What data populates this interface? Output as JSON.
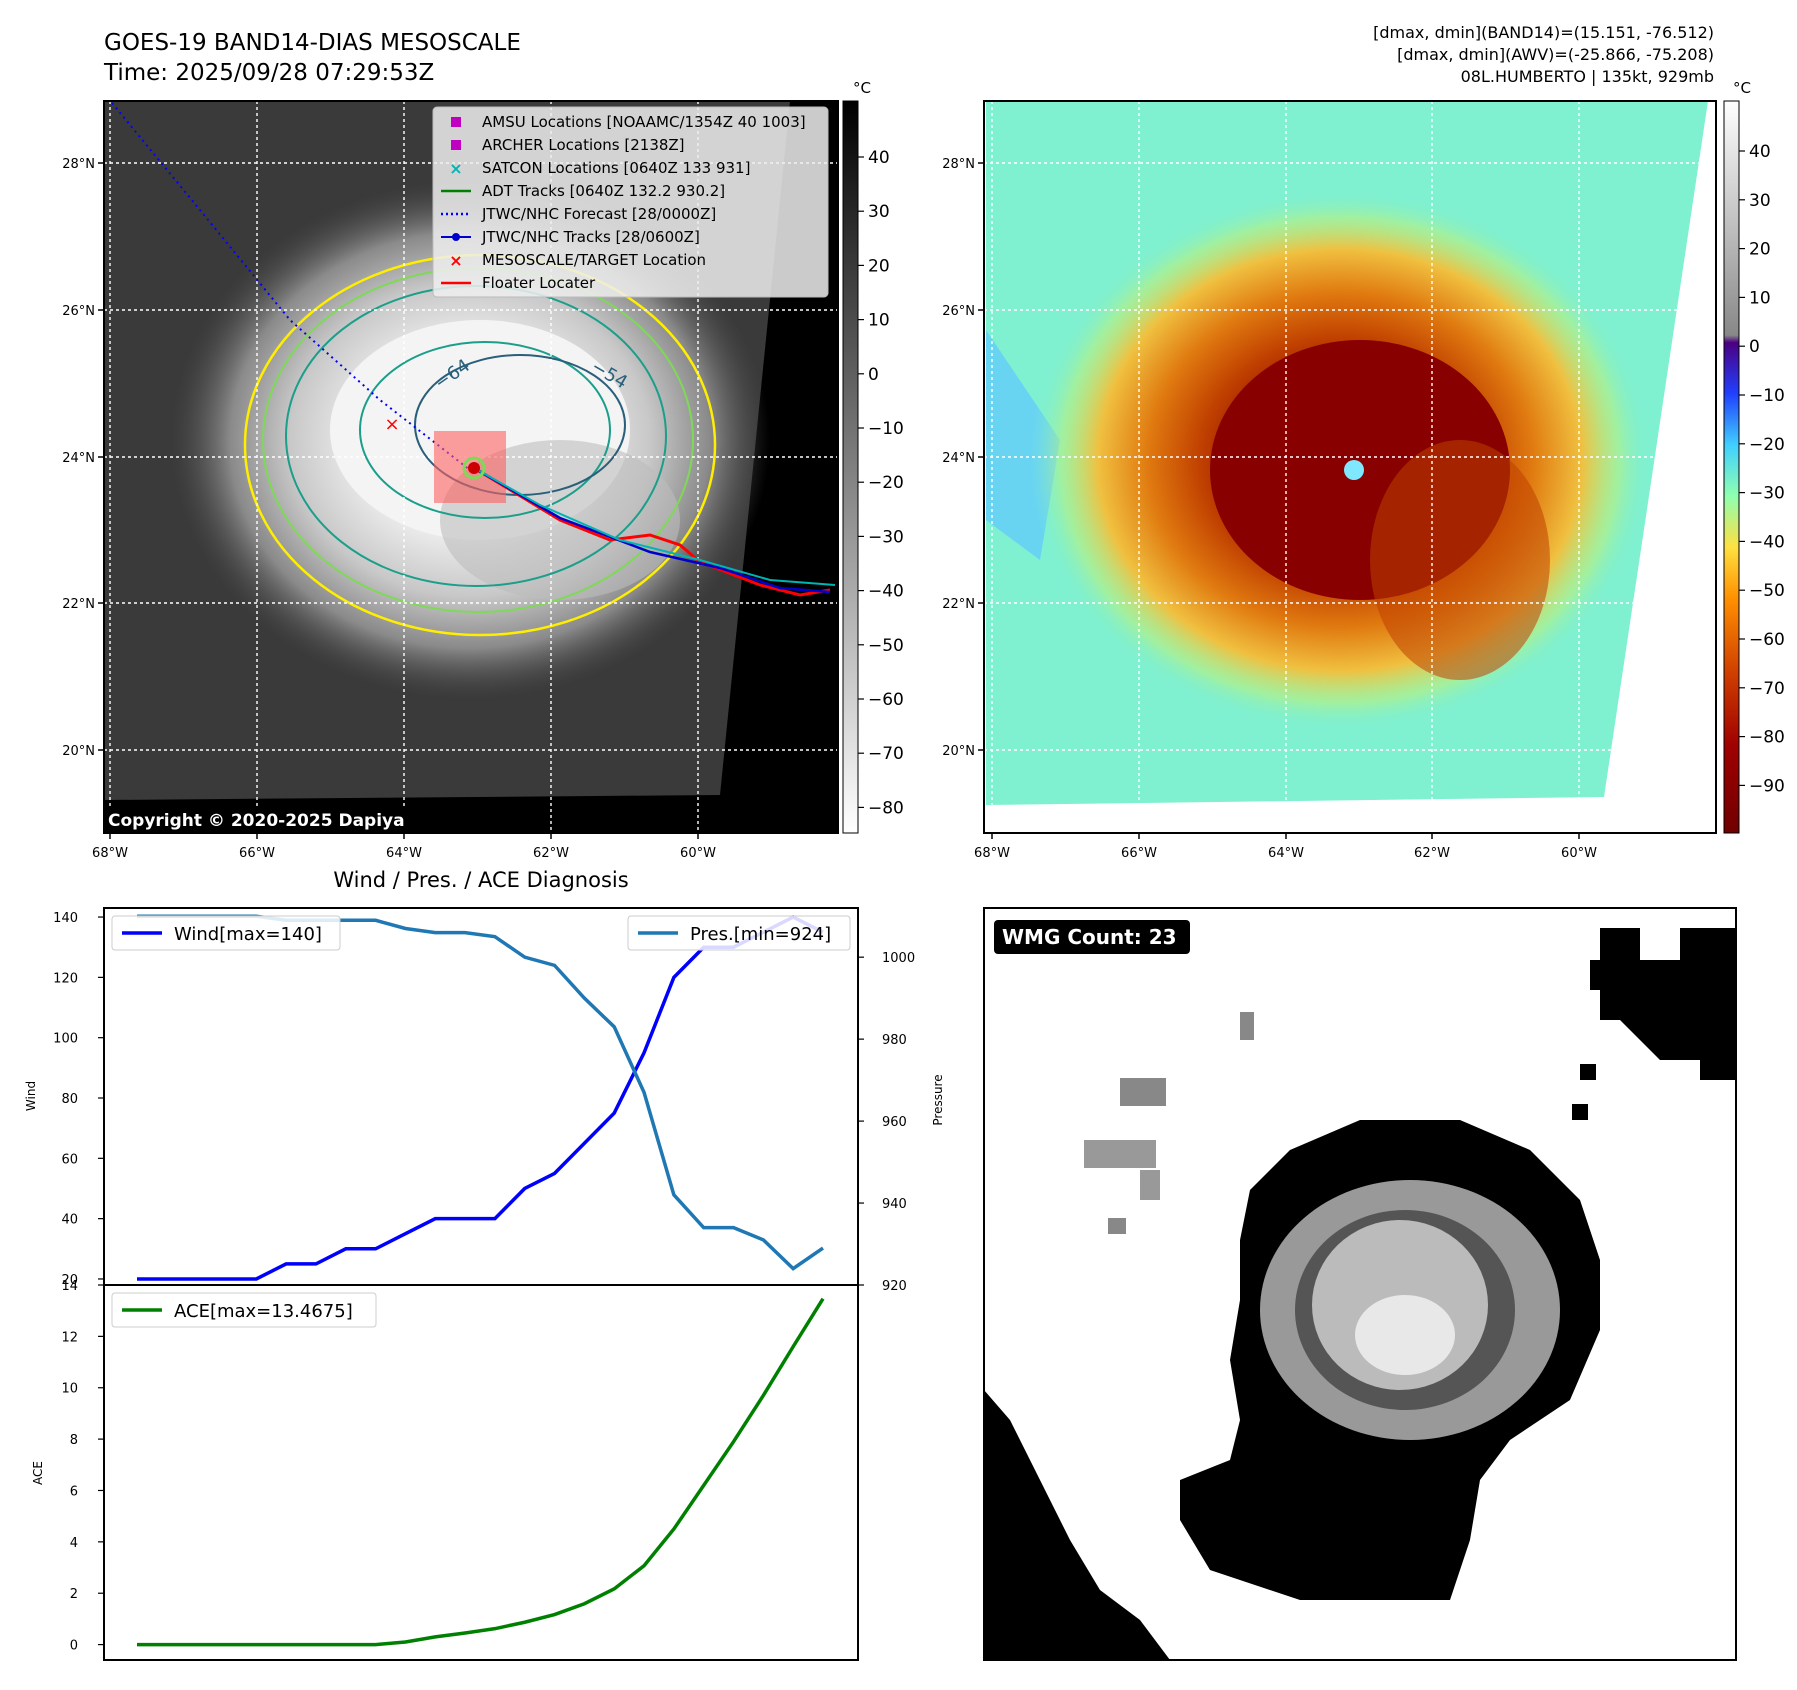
{
  "header": {
    "title": "GOES-19 BAND14-DIAS MESOSCALE",
    "time": "Time: 2025/09/28 07:29:53Z",
    "stats_line1": "[dmax, dmin](BAND14)=(15.151, -76.512)",
    "stats_line2": "[dmax, dmin](AWV)=(-25.866, -75.208)",
    "storm_line": "08L.HUMBERTO | 135kt, 929mb",
    "copyright": "Copyright © 2020-2025 Dapiya",
    "wmg_count": "WMG Count: 23",
    "diag_title": "Wind / Pres. / ACE Diagnosis"
  },
  "colors": {
    "wind": "#0000ff",
    "pressure": "#1f77b4",
    "ace": "#008000",
    "track_red": "#ff0000",
    "track_blue": "#0000cd",
    "adt_green": "#008000",
    "satcon_cyan": "#00b4b4",
    "amsu_magenta": "#c000c0"
  },
  "map": {
    "lat_labels": [
      "28°N",
      "26°N",
      "24°N",
      "22°N",
      "20°N"
    ],
    "lon_labels": [
      "68°W",
      "66°W",
      "64°W",
      "62°W",
      "60°W"
    ],
    "left_cbar_unit": "°C",
    "left_cbar_ticks": [
      "40",
      "30",
      "20",
      "10",
      "0",
      "−10",
      "−20",
      "−30",
      "−40",
      "−50",
      "−60",
      "−70",
      "−80"
    ],
    "right_cbar_unit": "°C",
    "right_cbar_ticks": [
      "40",
      "30",
      "20",
      "10",
      "0",
      "−10",
      "−20",
      "−30",
      "−40",
      "−50",
      "−60",
      "−70",
      "−80",
      "−90"
    ],
    "contour_label_a": "−64",
    "contour_label_b": "−54",
    "legend": [
      {
        "label": "AMSU Locations [NOAAMC/1354Z 40 1003]",
        "marker": "square",
        "color": "#c000c0"
      },
      {
        "label": "ARCHER Locations [2138Z]",
        "marker": "square",
        "color": "#c000c0"
      },
      {
        "label": "SATCON Locations [0640Z 133 931]",
        "marker": "x",
        "color": "#00b4b4"
      },
      {
        "label": "ADT Tracks [0640Z 132.2 930.2]",
        "marker": "line",
        "color": "#008000"
      },
      {
        "label": "JTWC/NHC Forecast [28/0000Z]",
        "marker": "dotted",
        "color": "#0000ff"
      },
      {
        "label": "JTWC/NHC Tracks [28/0600Z]",
        "marker": "line-dot",
        "color": "#0000cd"
      },
      {
        "label": "MESOSCALE/TARGET Location",
        "marker": "x",
        "color": "#ff0000"
      },
      {
        "label": "Floater Locater",
        "marker": "line",
        "color": "#ff0000"
      }
    ]
  },
  "chart_data": [
    {
      "type": "line",
      "title": "Wind / Pres. / ACE Diagnosis",
      "ylabel": "Wind",
      "y2label": "Pressure",
      "ylim": [
        18,
        143
      ],
      "y2lim": [
        920,
        1012
      ],
      "yticks": [
        "20",
        "40",
        "60",
        "80",
        "100",
        "120",
        "140"
      ],
      "y2ticks": [
        "920",
        "940",
        "960",
        "980",
        "1000"
      ],
      "series": [
        {
          "name": "Wind[max=140]",
          "axis": "left",
          "values": [
            20,
            20,
            20,
            20,
            20,
            25,
            25,
            30,
            30,
            35,
            40,
            40,
            40,
            50,
            55,
            65,
            75,
            95,
            120,
            130,
            130,
            135,
            140,
            135
          ]
        },
        {
          "name": "Pres.[min=924]",
          "axis": "right",
          "values": [
            1010,
            1010,
            1010,
            1010,
            1010,
            1009,
            1009,
            1009,
            1009,
            1007,
            1006,
            1006,
            1005,
            1000,
            998,
            990,
            983,
            967,
            942,
            934,
            934,
            931,
            924,
            929
          ]
        }
      ]
    },
    {
      "type": "line",
      "ylabel": "ACE",
      "ylim": [
        -0.6,
        14
      ],
      "yticks": [
        "0",
        "2",
        "4",
        "6",
        "8",
        "10",
        "12",
        "14"
      ],
      "series": [
        {
          "name": "ACE[max=13.4675]",
          "values": [
            0,
            0,
            0,
            0,
            0,
            0,
            0,
            0,
            0,
            0.1,
            0.3,
            0.45,
            0.62,
            0.87,
            1.17,
            1.59,
            2.17,
            3.07,
            4.5,
            6.2,
            7.9,
            9.7,
            11.6,
            13.4675
          ]
        }
      ]
    }
  ]
}
